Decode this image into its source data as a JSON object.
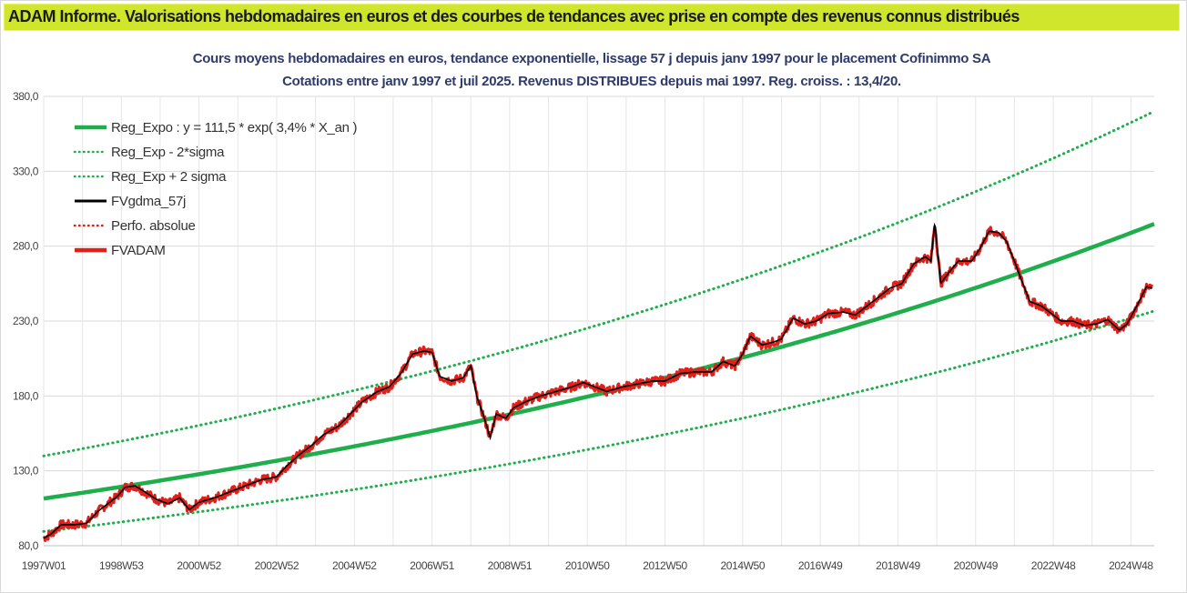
{
  "banner": {
    "text": "ADAM Informe. Valorisations hebdomadaires en euros et des courbes de tendances avec prise en compte des revenus connus distribués",
    "background": "#cfe62c"
  },
  "chart_data": {
    "type": "line",
    "title": "Cours moyens hebdomadaires en euros, tendance exponentielle, lissage 57 j depuis janv 1997  pour le placement Cofinimmo SA",
    "subtitle": "Cotations entre janv 1997 et juil 2025. Revenus DISTRIBUES depuis mai 1997. Reg. croiss. : 13,4/20.",
    "xlabel": "",
    "ylabel": "",
    "ylim": [
      80,
      380
    ],
    "xlim": [
      1997.0,
      2025.6
    ],
    "yticks": [
      "80,0",
      "130,0",
      "180,0",
      "230,0",
      "280,0",
      "330,0",
      "380,0"
    ],
    "xtick_labels": [
      "1997W01",
      "1998W53",
      "2000W52",
      "2002W52",
      "2004W52",
      "2006W51",
      "2008W51",
      "2010W50",
      "2012W50",
      "2014W50",
      "2016W49",
      "2018W49",
      "2020W49",
      "2022W48",
      "2024W48"
    ],
    "xtick_positions": [
      1997.0,
      1999.0,
      2001.0,
      2003.0,
      2005.0,
      2007.0,
      2009.0,
      2011.0,
      2013.0,
      2015.0,
      2017.0,
      2019.0,
      2021.0,
      2023.0,
      2025.0
    ],
    "grid": true,
    "legend_position": "top-left",
    "regression": {
      "a": 111.5,
      "rate": 0.034,
      "upper_factor": 1.255,
      "lower_factor": 0.803
    },
    "series": [
      {
        "name": "Reg_Expo : y = 111,5 * exp( 3,4% *  X_an )",
        "color": "#1fae4b",
        "style": "solid-thick",
        "kind": "reg"
      },
      {
        "name": "Reg_Exp - 2*sigma",
        "color": "#1fae4b",
        "style": "dotted",
        "kind": "lower"
      },
      {
        "name": "Reg_Exp + 2 sigma",
        "color": "#1fae4b",
        "style": "dotted",
        "kind": "upper"
      },
      {
        "name": "FVgdma_57j",
        "color": "#000000",
        "style": "solid",
        "kind": "smooth"
      },
      {
        "name": "Perfo. absolue",
        "color": "#e0201b",
        "style": "dotted",
        "kind": "perf"
      },
      {
        "name": "FVADAM",
        "color": "#e0201b",
        "style": "solid-thick",
        "kind": "price"
      }
    ],
    "price_points": [
      [
        1997.0,
        85
      ],
      [
        1997.2,
        88
      ],
      [
        1997.45,
        94
      ],
      [
        1997.8,
        94
      ],
      [
        1998.1,
        95
      ],
      [
        1998.4,
        103
      ],
      [
        1998.7,
        109
      ],
      [
        1998.9,
        113
      ],
      [
        1999.1,
        119
      ],
      [
        1999.35,
        120
      ],
      [
        1999.6,
        116
      ],
      [
        1999.9,
        111
      ],
      [
        2000.2,
        108
      ],
      [
        2000.5,
        112
      ],
      [
        2000.75,
        104
      ],
      [
        2001.0,
        109
      ],
      [
        2001.4,
        112
      ],
      [
        2001.8,
        116
      ],
      [
        2002.2,
        120
      ],
      [
        2002.6,
        124
      ],
      [
        2003.0,
        126
      ],
      [
        2003.25,
        133
      ],
      [
        2003.55,
        140
      ],
      [
        2003.9,
        147
      ],
      [
        2004.2,
        154
      ],
      [
        2004.6,
        160
      ],
      [
        2004.9,
        168
      ],
      [
        2005.2,
        176
      ],
      [
        2005.6,
        183
      ],
      [
        2005.9,
        186
      ],
      [
        2006.2,
        195
      ],
      [
        2006.5,
        208
      ],
      [
        2006.8,
        210
      ],
      [
        2007.0,
        209
      ],
      [
        2007.2,
        193
      ],
      [
        2007.5,
        190
      ],
      [
        2007.8,
        192
      ],
      [
        2008.0,
        200
      ],
      [
        2008.15,
        180
      ],
      [
        2008.35,
        165
      ],
      [
        2008.5,
        152
      ],
      [
        2008.65,
        168
      ],
      [
        2008.9,
        165
      ],
      [
        2009.1,
        172
      ],
      [
        2009.4,
        176
      ],
      [
        2009.8,
        180
      ],
      [
        2010.2,
        183
      ],
      [
        2010.6,
        186
      ],
      [
        2010.9,
        189
      ],
      [
        2011.2,
        186
      ],
      [
        2011.5,
        183
      ],
      [
        2011.9,
        186
      ],
      [
        2012.3,
        188
      ],
      [
        2012.7,
        190
      ],
      [
        2013.0,
        190
      ],
      [
        2013.4,
        195
      ],
      [
        2013.8,
        196
      ],
      [
        2014.2,
        196
      ],
      [
        2014.5,
        203
      ],
      [
        2014.8,
        200
      ],
      [
        2015.0,
        208
      ],
      [
        2015.2,
        220
      ],
      [
        2015.5,
        214
      ],
      [
        2015.8,
        216
      ],
      [
        2016.0,
        218
      ],
      [
        2016.3,
        232
      ],
      [
        2016.6,
        228
      ],
      [
        2016.9,
        230
      ],
      [
        2017.2,
        235
      ],
      [
        2017.6,
        236
      ],
      [
        2017.9,
        234
      ],
      [
        2018.2,
        240
      ],
      [
        2018.5,
        246
      ],
      [
        2018.8,
        252
      ],
      [
        2019.1,
        255
      ],
      [
        2019.4,
        268
      ],
      [
        2019.7,
        273
      ],
      [
        2019.85,
        270
      ],
      [
        2019.95,
        296
      ],
      [
        2020.1,
        255
      ],
      [
        2020.3,
        262
      ],
      [
        2020.55,
        270
      ],
      [
        2020.9,
        270
      ],
      [
        2021.1,
        278
      ],
      [
        2021.35,
        290
      ],
      [
        2021.6,
        289
      ],
      [
        2021.8,
        283
      ],
      [
        2022.0,
        270
      ],
      [
        2022.2,
        256
      ],
      [
        2022.4,
        243
      ],
      [
        2022.7,
        240
      ],
      [
        2023.0,
        234
      ],
      [
        2023.2,
        230
      ],
      [
        2023.5,
        230
      ],
      [
        2023.8,
        227
      ],
      [
        2024.1,
        228
      ],
      [
        2024.4,
        231
      ],
      [
        2024.7,
        224
      ],
      [
        2024.9,
        228
      ],
      [
        2025.15,
        240
      ],
      [
        2025.4,
        253
      ],
      [
        2025.55,
        252
      ]
    ]
  }
}
